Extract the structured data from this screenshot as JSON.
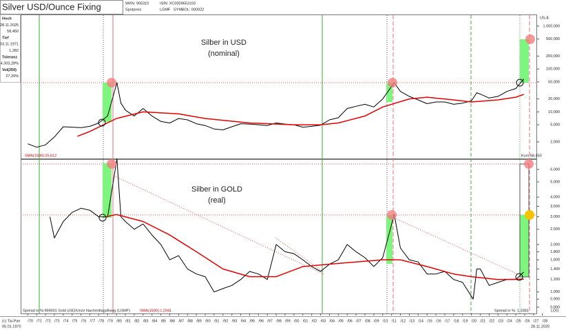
{
  "header": {
    "title": "Silver USD/Ounce Fixing",
    "wkn": "WKN: 965310",
    "kind": "Spotpreis",
    "isin": "ISIN: XC0009653103",
    "source": "LGMF",
    "symbol": "SYMBOL: 000922"
  },
  "sidebar": {
    "items": [
      "Hoch",
      "28.11.2025",
      "58,450",
      "Tief",
      "03.11.1971",
      "1,282",
      "Toleranz",
      "4.303,28%",
      "Vol(250)",
      "27,29%"
    ]
  },
  "chart_data": [
    {
      "type": "line",
      "title": "Silber in USD",
      "subtitle": "(nominal)",
      "log_scale": true,
      "y_unit": "US-$",
      "xlim": [
        1969.2,
        2027.4
      ],
      "ylim": [
        0.82,
        1800
      ],
      "yticks": [
        {
          "value": 1000,
          "label": "1.000,000"
        },
        {
          "value": 500,
          "label": "500,000"
        },
        {
          "value": 200,
          "label": "200,000"
        },
        {
          "value": 100,
          "label": "100,000"
        },
        {
          "value": 50,
          "label": "50,000"
        },
        {
          "value": 20,
          "label": "20,000"
        },
        {
          "value": 10,
          "label": "10,000"
        },
        {
          "value": 5,
          "label": "5,000"
        },
        {
          "value": 2,
          "label": "2,000"
        }
      ],
      "annotations": [
        "SMA(1500):25,612",
        "Kurs:58,450"
      ],
      "series": [
        {
          "color": "#000000",
          "x": [
            1970,
            1971,
            1972,
            1973,
            1974,
            1975,
            1976,
            1977,
            1978,
            1979,
            1980.05,
            1980.5,
            1981,
            1982,
            1983,
            1984,
            1985,
            1986,
            1987,
            1988,
            1989,
            1990,
            1991,
            1992,
            1993,
            1994,
            1995,
            1996,
            1997,
            1998,
            1999,
            2000,
            2001,
            2002,
            2003,
            2004,
            2005,
            2006,
            2007,
            2008,
            2009,
            2010,
            2011.3,
            2012,
            2013,
            2014,
            2015,
            2016,
            2017,
            2018,
            2019,
            2020,
            2020.6,
            2021,
            2022,
            2023,
            2024,
            2025,
            2025.9
          ],
          "values": [
            1.8,
            1.5,
            1.7,
            2.6,
            4.5,
            4.4,
            4.3,
            4.6,
            5.5,
            8,
            48,
            16,
            11,
            8,
            12,
            8,
            6,
            5.5,
            7,
            6.5,
            5.3,
            4.8,
            4,
            3.8,
            4.5,
            5.3,
            5.2,
            5,
            4.8,
            5.5,
            5.2,
            5,
            4.4,
            4.6,
            4.9,
            6.5,
            7.3,
            12,
            13.5,
            15,
            13,
            20,
            48,
            30,
            23,
            19,
            15.5,
            17,
            17,
            15,
            16,
            18,
            28,
            26,
            21,
            23,
            30,
            35,
            58.45
          ]
        },
        {
          "color": "#e00000",
          "x": [
            1975.6,
            1977,
            1980,
            1983,
            1987,
            1990,
            1995,
            2000,
            2003,
            2005,
            2008,
            2010,
            2013,
            2015,
            2018,
            2020,
            2023,
            2025,
            2025.9
          ],
          "values": [
            2.7,
            3.5,
            7,
            10,
            9,
            7,
            5.5,
            5,
            5,
            5.5,
            8,
            13,
            20,
            22,
            19,
            17,
            19,
            22,
            25.612
          ]
        }
      ]
    },
    {
      "type": "line",
      "title": "Silber in GOLD",
      "subtitle": "(real)",
      "log_scale": true,
      "xlim": [
        1969.2,
        2027.4
      ],
      "ylim": [
        0.73,
        6.9
      ],
      "yticks": [
        {
          "value": 6,
          "label": "6,000"
        },
        {
          "value": 5,
          "label": "5,000"
        },
        {
          "value": 4,
          "label": "4,000"
        },
        {
          "value": 3.5,
          "label": "3,500"
        },
        {
          "value": 3,
          "label": "3,000"
        },
        {
          "value": 2.5,
          "label": "2,500"
        },
        {
          "value": 2,
          "label": "2,000"
        },
        {
          "value": 1.8,
          "label": "1,800"
        },
        {
          "value": 1.6,
          "label": "1,600"
        },
        {
          "value": 1.4,
          "label": "1,400"
        },
        {
          "value": 1.2,
          "label": "1,200"
        },
        {
          "value": 1,
          "label": "1,000"
        },
        {
          "value": 0.9,
          "label": "0,900"
        },
        {
          "value": 0.8,
          "label": "0,800"
        }
      ],
      "xticks": [
        {
          "value": 1970,
          "label": "/70"
        },
        {
          "value": 1971,
          "label": "/71"
        },
        {
          "value": 1972,
          "label": "/72"
        },
        {
          "value": 1973,
          "label": "/73"
        },
        {
          "value": 1974,
          "label": "/74"
        },
        {
          "value": 1975,
          "label": "/75"
        },
        {
          "value": 1976,
          "label": "/76"
        },
        {
          "value": 1977,
          "label": "/77"
        },
        {
          "value": 1978,
          "label": "/78"
        },
        {
          "value": 1979,
          "label": "/79"
        },
        {
          "value": 1980,
          "label": "/80"
        },
        {
          "value": 1981,
          "label": "/81"
        },
        {
          "value": 1982,
          "label": "/82"
        },
        {
          "value": 1983,
          "label": "/83"
        },
        {
          "value": 1984,
          "label": "/84"
        },
        {
          "value": 1985,
          "label": "/85"
        },
        {
          "value": 1986,
          "label": "/86"
        },
        {
          "value": 1987,
          "label": "/87"
        },
        {
          "value": 1988,
          "label": "/88"
        },
        {
          "value": 1989,
          "label": "/89"
        },
        {
          "value": 1990,
          "label": "/90"
        },
        {
          "value": 1991,
          "label": "/91"
        },
        {
          "value": 1992,
          "label": "/92"
        },
        {
          "value": 1993,
          "label": "/93"
        },
        {
          "value": 1994,
          "label": "/94"
        },
        {
          "value": 1995,
          "label": "/95"
        },
        {
          "value": 1996,
          "label": "/96"
        },
        {
          "value": 1997,
          "label": "/97"
        },
        {
          "value": 1998,
          "label": "/98"
        },
        {
          "value": 1999,
          "label": "/99"
        },
        {
          "value": 2000,
          "label": "/00"
        },
        {
          "value": 2001,
          "label": "/01"
        },
        {
          "value": 2002,
          "label": "/02"
        },
        {
          "value": 2003,
          "label": "/03"
        },
        {
          "value": 2004,
          "label": "/04"
        },
        {
          "value": 2005,
          "label": "/05"
        },
        {
          "value": 2006,
          "label": "/06"
        },
        {
          "value": 2007,
          "label": "/07"
        },
        {
          "value": 2008,
          "label": "/08"
        },
        {
          "value": 2009,
          "label": "/09"
        },
        {
          "value": 2010,
          "label": "/10"
        },
        {
          "value": 2011,
          "label": "/11"
        },
        {
          "value": 2012,
          "label": "/12"
        },
        {
          "value": 2013,
          "label": "/13"
        },
        {
          "value": 2014,
          "label": "/14"
        },
        {
          "value": 2015,
          "label": "/15"
        },
        {
          "value": 2016,
          "label": "/16"
        },
        {
          "value": 2017,
          "label": "/17"
        },
        {
          "value": 2018,
          "label": "/18"
        },
        {
          "value": 2019,
          "label": "/19"
        },
        {
          "value": 2020,
          "label": "/20"
        },
        {
          "value": 2021,
          "label": "/21"
        },
        {
          "value": 2022,
          "label": "/22"
        },
        {
          "value": 2023,
          "label": "/23"
        },
        {
          "value": 2024,
          "label": "/24"
        },
        {
          "value": 2025,
          "label": "/25"
        },
        {
          "value": 2026,
          "label": "/26"
        },
        {
          "value": 2027,
          "label": "/27"
        },
        {
          "value": 2028,
          "label": "/28"
        }
      ],
      "annotations": [
        "Spread in %:999001 Gold USD/Unze Nachmittagsfixing (LGMF)",
        "SMA(1500):1,2041",
        "Spread in %: 1,3381",
        "LOG"
      ],
      "series": [
        {
          "color": "#000000",
          "x": [
            1972.5,
            1973,
            1974,
            1975,
            1976,
            1977,
            1978,
            1979,
            1980.05,
            1980.5,
            1981,
            1982,
            1983,
            1984,
            1985,
            1986,
            1987,
            1988,
            1989,
            1990,
            1991,
            1992,
            1993,
            1994,
            1995,
            1996,
            1997,
            1998,
            1999,
            2000,
            2001,
            2002,
            2003,
            2004,
            2005,
            2006,
            2007,
            2008,
            2009,
            2010,
            2011.3,
            2012,
            2013,
            2014,
            2015,
            2016,
            2017,
            2018,
            2019,
            2020.2,
            2020.6,
            2021,
            2022,
            2023,
            2024,
            2025,
            2025.9
          ],
          "values": [
            3.0,
            2.2,
            2.8,
            3.2,
            3.4,
            3.3,
            3.0,
            3.0,
            7,
            3.0,
            2.8,
            2.5,
            2.7,
            2.3,
            2.0,
            1.6,
            1.7,
            1.4,
            1.3,
            1.25,
            1.0,
            1.05,
            1.1,
            1.2,
            1.35,
            1.3,
            1.2,
            2.0,
            1.8,
            1.75,
            1.6,
            1.45,
            1.35,
            1.5,
            1.6,
            2.0,
            1.8,
            1.65,
            1.45,
            1.65,
            3.1,
            1.9,
            1.6,
            1.55,
            1.3,
            1.3,
            1.35,
            1.2,
            1.15,
            0.9,
            1.4,
            1.4,
            1.1,
            1.15,
            1.2,
            1.2,
            1.3381
          ]
        },
        {
          "color": "#e00000",
          "x": [
            1978.8,
            1980,
            1983,
            1986,
            1989,
            1992,
            1995,
            1998,
            2001,
            2004,
            2007,
            2010,
            2012,
            2015,
            2018,
            2020,
            2023,
            2025.9
          ],
          "values": [
            3.0,
            3.1,
            2.8,
            2.3,
            1.8,
            1.4,
            1.25,
            1.25,
            1.45,
            1.5,
            1.55,
            1.6,
            1.6,
            1.45,
            1.3,
            1.25,
            1.2,
            1.2041
          ]
        }
      ]
    }
  ],
  "footer": {
    "copyright": "(c) Tai-Pan",
    "start_date": "05.01.1970",
    "end_date": "28.11.2025"
  }
}
